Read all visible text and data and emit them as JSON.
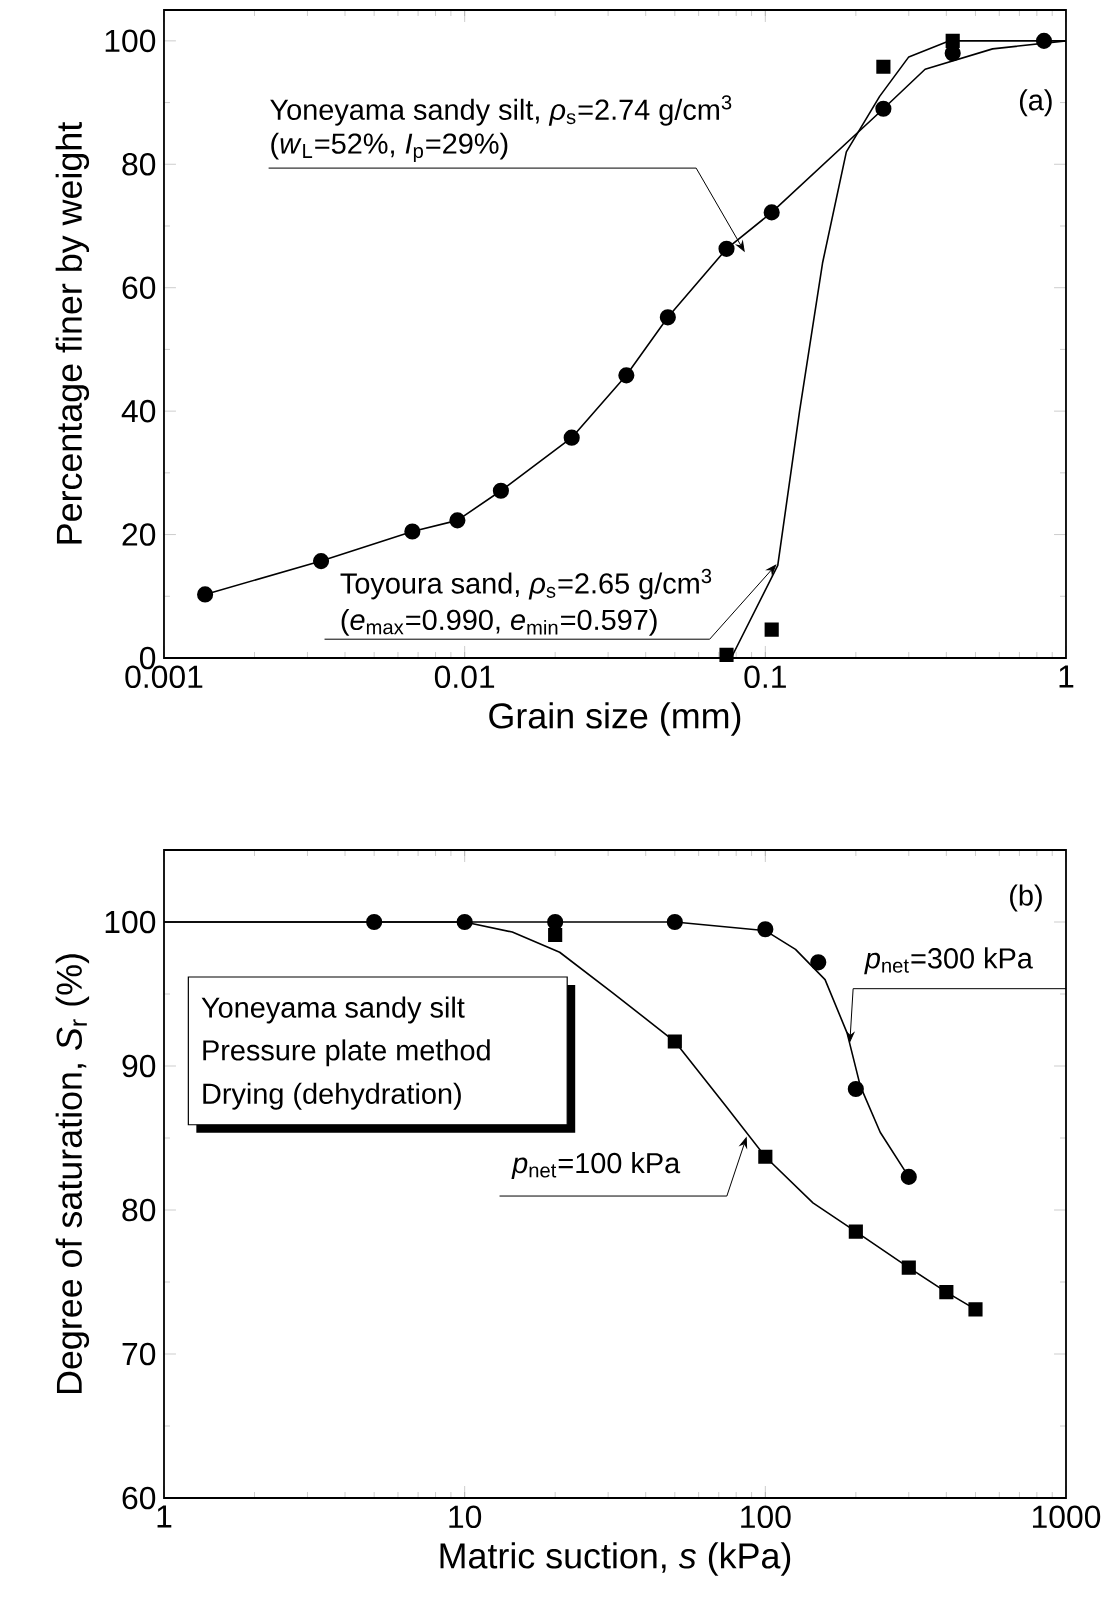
{
  "chart_data": [
    {
      "type": "scatter",
      "xlabel": "Grain size  (mm)",
      "ylabel": "Percentage finer by weight",
      "log": "x",
      "xlim": [
        0.001,
        1
      ],
      "xticks": [
        0.001,
        0.01,
        0.1,
        1
      ],
      "ylim": [
        0,
        105
      ],
      "yticks": [
        0,
        20,
        40,
        60,
        80,
        100
      ],
      "series": [
        {
          "marker": "circle",
          "color": "#000000",
          "x": [
            0.00137,
            0.00333,
            0.0067,
            0.00946,
            0.0132,
            0.0227,
            0.0345,
            0.0474,
            0.0743,
            0.105,
            0.247,
            0.42,
            0.845
          ],
          "values": [
            10.3,
            15.7,
            20.5,
            22.3,
            27.1,
            35.7,
            45.8,
            55.2,
            66.3,
            72.2,
            89,
            98,
            100
          ]
        },
        {
          "type": "line",
          "marker": "none",
          "color": "#000000",
          "x": [
            0.00137,
            0.00333,
            0.0067,
            0.00946,
            0.0132,
            0.0227,
            0.0345,
            0.0474,
            0.0743,
            0.105,
            0.247,
            0.34,
            0.57,
            1
          ],
          "values": [
            10.3,
            15.7,
            20.5,
            22.3,
            27.1,
            35.7,
            45.8,
            55.2,
            66.3,
            72.2,
            89,
            95.4,
            98.7,
            100
          ]
        },
        {
          "marker": "square",
          "color": "#000000",
          "x": [
            0.0743,
            0.105,
            0.247,
            0.42
          ],
          "values": [
            0.5,
            4.6,
            95.8,
            100
          ]
        },
        {
          "type": "line",
          "marker": "none",
          "color": "#000000",
          "x": [
            0.077,
            0.11,
            0.13,
            0.155,
            0.186,
            0.24,
            0.3,
            0.41,
            1
          ],
          "values": [
            0,
            15,
            40,
            64,
            82,
            91,
            97.4,
            100,
            100
          ]
        }
      ],
      "annotations": [
        "Yoneyama sandy silt, *ρ*$_{s}$=2.74 g/cm$^{3}$",
        "(*w*$_{L}$=52%, *I*$_{p}$=29%)",
        {
          "text": "Toyoura sand, *ρ*$_{s}$=2.65 g/cm$^{3}$",
          "x": 0.109,
          "y": 15.2
        },
        "(*e*$_{max}$=0.990, *e*$_{min}$=0.597)",
        "(a)"
      ]
    },
    {
      "type": "scatter",
      "xlabel": "Matric suction, *s*  (kPa)",
      "ylabel": "Degree of saturation, *S*$_{r}$  (%)",
      "log": "x",
      "xlim": [
        1,
        1000
      ],
      "xticks": [
        1,
        10,
        100,
        1000
      ],
      "ylim": [
        60,
        105
      ],
      "yticks": [
        60,
        70,
        80,
        90,
        100
      ],
      "series": [
        {
          "marker": "square",
          "color": "#000000",
          "x": [
            20,
            50,
            100,
            200,
            300,
            400,
            500
          ],
          "values": [
            99.1,
            91.7,
            83.7,
            78.5,
            76,
            74.3,
            73.1
          ]
        },
        {
          "type": "line",
          "marker": "none",
          "color": "#000000",
          "x": [
            1,
            50,
            100,
            126,
            158,
            187,
            207,
            241,
            300
          ],
          "values": [
            100,
            100,
            99.4,
            98.1,
            96,
            92.3,
            88.6,
            85.4,
            82.3
          ]
        },
        {
          "marker": "circle",
          "color": "#000000",
          "x": [
            5,
            10,
            20,
            50,
            100,
            150,
            200,
            300
          ],
          "values": [
            100,
            100,
            100,
            100,
            99.5,
            97.2,
            88.4,
            82.3
          ]
        },
        {
          "type": "line",
          "marker": "none",
          "color": "#000000",
          "x": [
            1,
            10,
            14.4,
            20.7,
            31,
            50,
            74,
            100,
            144,
            200,
            300,
            400,
            500
          ],
          "values": [
            100,
            100,
            99.3,
            97.9,
            95.1,
            91.7,
            87.2,
            83.7,
            80.5,
            78.5,
            76,
            74.3,
            73.1
          ]
        }
      ],
      "annotations": [
        "Yoneyama sandy silt",
        "Pressure plate method",
        "Drying (dehydration)",
        {
          "text": "*p*$_{net}$=300 kPa",
          "x": 191,
          "y": 91.6
        },
        {
          "text": "*p*$_{net}$=100 kPa",
          "x": 86.7,
          "y": 85.1
        },
        "(b)"
      ]
    }
  ]
}
